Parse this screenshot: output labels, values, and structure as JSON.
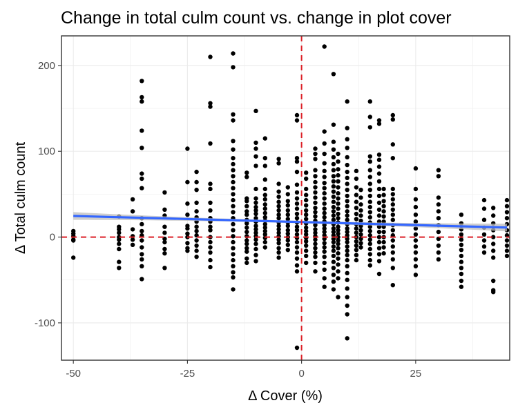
{
  "chart_data": {
    "type": "scatter",
    "title": "Change in total culm count vs. change in plot cover",
    "xlabel": "Δ Cover (%)",
    "ylabel": "Δ Total culm count",
    "xlim": [
      -52.6,
      45.6
    ],
    "ylim": [
      -143.5,
      234.5
    ],
    "x_ticks": [
      -50,
      -25,
      0,
      25
    ],
    "x_tick_labels": [
      "-50",
      "-25",
      "0",
      "25"
    ],
    "y_ticks": [
      -100,
      0,
      100,
      200
    ],
    "y_tick_labels": [
      "-100",
      "0",
      "100",
      "200"
    ],
    "grid": true,
    "legend": "none",
    "reference_lines": {
      "x": 0,
      "y": 0,
      "color": "#dc1f26",
      "style": "dashed"
    },
    "trend": {
      "type": "linear",
      "color": "#3366ff",
      "band_color": "#bdbdbd",
      "start": [
        -50,
        24.6
      ],
      "end": [
        45,
        11.1
      ],
      "band_halfwidth_ends": 4.5,
      "band_halfwidth_center": 1.4
    },
    "columns": [
      {
        "x": -50,
        "y": [
          7,
          4,
          1,
          -3,
          -4,
          -24
        ]
      },
      {
        "x": -40,
        "y": [
          24,
          12,
          9,
          5,
          0,
          -3,
          -8,
          -14,
          -29,
          -36
        ]
      },
      {
        "x": -37,
        "y": [
          44,
          30,
          9,
          1,
          -3,
          -9
        ]
      },
      {
        "x": -35,
        "y": [
          182,
          163,
          158,
          124,
          104,
          74,
          68,
          57,
          22,
          15,
          7,
          2,
          -4,
          -12,
          -20,
          -26,
          -34,
          -49
        ]
      },
      {
        "x": -30,
        "y": [
          52,
          32,
          25,
          12,
          5,
          -2,
          -6,
          -14,
          -19,
          -36
        ]
      },
      {
        "x": -25,
        "y": [
          103,
          64,
          39,
          26,
          13,
          10,
          4,
          0,
          -7,
          -13,
          -16
        ]
      },
      {
        "x": -23,
        "y": [
          76,
          64,
          55,
          40,
          30,
          23,
          18,
          12,
          7,
          2,
          -4,
          -10,
          -16,
          -23
        ]
      },
      {
        "x": -20,
        "y": [
          210,
          156,
          152,
          109,
          62,
          56,
          40,
          31,
          22,
          18,
          12,
          8,
          0,
          -6,
          -12,
          -18,
          -27,
          -35
        ]
      },
      {
        "x": -15,
        "y": [
          214,
          198,
          143,
          136,
          112,
          102,
          92,
          85,
          78,
          71,
          64,
          57,
          50,
          43,
          36,
          29,
          22,
          15,
          8,
          1,
          -6,
          -13,
          -20,
          -27,
          -34,
          -41,
          -47,
          -61
        ]
      },
      {
        "x": -12,
        "y": [
          75,
          70,
          45,
          42,
          36,
          30,
          26,
          20,
          16,
          11,
          6,
          1,
          -4,
          -8,
          -13,
          -17,
          -25,
          -30
        ]
      },
      {
        "x": -10,
        "y": [
          147,
          110,
          103,
          94,
          83,
          56,
          45,
          40,
          35,
          31,
          27,
          22,
          18,
          13,
          9,
          5,
          1,
          -3,
          -8,
          -14,
          -21,
          -28
        ]
      },
      {
        "x": -8,
        "y": [
          115,
          92,
          83,
          67,
          56,
          49,
          44,
          38,
          33,
          28,
          23,
          19,
          15,
          11,
          7,
          3,
          -1,
          -6,
          -12
        ]
      },
      {
        "x": -5,
        "y": [
          91,
          86,
          62,
          53,
          47,
          41,
          36,
          31,
          26,
          22,
          17,
          13,
          9,
          5,
          1,
          -3,
          -7,
          -13,
          -18,
          -24
        ]
      },
      {
        "x": -3,
        "y": [
          58,
          50,
          42,
          37,
          31,
          26,
          21,
          17,
          13,
          8,
          4,
          0,
          -4,
          -9,
          -15
        ]
      },
      {
        "x": -1,
        "y": [
          142,
          136,
          92,
          88,
          76,
          61,
          52,
          45,
          39,
          33,
          27,
          22,
          17,
          12,
          8,
          3,
          -1,
          -6,
          -12,
          -18,
          -25,
          -33,
          -40,
          -129
        ]
      },
      {
        "x": 1,
        "y": [
          75,
          68,
          56,
          49,
          43,
          37,
          31,
          26,
          21,
          16,
          11,
          7,
          3,
          -1,
          -5,
          -10,
          -16,
          -22,
          -30
        ]
      },
      {
        "x": 3,
        "y": [
          103,
          97,
          91,
          78,
          71,
          64,
          58,
          52,
          46,
          40,
          34,
          29,
          24,
          19,
          14,
          9,
          5,
          1,
          -3,
          -8,
          -13,
          -18,
          -23,
          -30,
          -40
        ]
      },
      {
        "x": 5,
        "y": [
          222,
          123,
          109,
          97,
          86,
          77,
          70,
          63,
          57,
          51,
          45,
          39,
          33,
          28,
          23,
          18,
          14,
          10,
          6,
          2,
          -2,
          -7,
          -12,
          -17,
          -23,
          -30,
          -38,
          -48,
          -58
        ]
      },
      {
        "x": 7,
        "y": [
          190,
          131,
          111,
          102,
          93,
          85,
          78,
          71,
          65,
          59,
          53,
          47,
          41,
          35,
          30,
          25,
          20,
          15,
          10,
          6,
          2,
          -2,
          -6,
          -11,
          -16,
          -22,
          -29,
          -36,
          -44,
          -52,
          -61
        ]
      },
      {
        "x": 8,
        "y": [
          97,
          88,
          79,
          72,
          65,
          58,
          51,
          45,
          39,
          33,
          27,
          22,
          17,
          12,
          8,
          4,
          0,
          -4,
          -8,
          -13,
          -19,
          -25,
          -32,
          -40,
          -48,
          -70
        ]
      },
      {
        "x": 10,
        "y": [
          158,
          127,
          114,
          104,
          93,
          84,
          76,
          69,
          62,
          55,
          48,
          42,
          36,
          30,
          25,
          20,
          15,
          10,
          6,
          2,
          -2,
          -6,
          -11,
          -16,
          -21,
          -27,
          -34,
          -42,
          -50,
          -60,
          -70,
          -80,
          -90,
          -118
        ]
      },
      {
        "x": 12,
        "y": [
          77,
          68,
          58,
          49,
          41,
          34,
          27,
          21,
          15,
          10,
          5,
          0,
          -5,
          -10,
          -15,
          -21,
          -27
        ]
      },
      {
        "x": 13,
        "y": [
          55,
          46,
          38,
          31,
          25,
          19,
          13,
          8,
          3,
          -2,
          -7,
          -12
        ]
      },
      {
        "x": 15,
        "y": [
          158,
          140,
          128,
          94,
          88,
          78,
          70,
          62,
          55,
          48,
          41,
          35,
          29,
          23,
          17,
          12,
          7,
          2,
          -3,
          -8,
          -14,
          -20,
          -27,
          -33
        ]
      },
      {
        "x": 17,
        "y": [
          136,
          132,
          96,
          90,
          82,
          74,
          65,
          56,
          48,
          40,
          32,
          25,
          18,
          12,
          6,
          0,
          -6,
          -13,
          -20,
          -28,
          -43
        ]
      },
      {
        "x": 18,
        "y": [
          56,
          49,
          42,
          36,
          30,
          24,
          18,
          12,
          6,
          0,
          -6,
          -12,
          -19
        ]
      },
      {
        "x": 20,
        "y": [
          142,
          137,
          108,
          92,
          56,
          50,
          44,
          38,
          32,
          26,
          20,
          14,
          8,
          2,
          -4,
          -11,
          -18,
          -26,
          -36,
          -56
        ]
      },
      {
        "x": 25,
        "y": [
          80,
          56,
          44,
          35,
          26,
          18,
          10,
          3,
          -4,
          -11,
          -18,
          -26,
          -34,
          -44
        ]
      },
      {
        "x": 30,
        "y": [
          78,
          71,
          46,
          38,
          30,
          22,
          14,
          6,
          -2,
          -10,
          -18,
          -26
        ]
      },
      {
        "x": 35,
        "y": [
          26,
          16,
          9,
          3,
          -3,
          -9,
          -15,
          -22,
          -29,
          -36,
          -43,
          -51,
          -58
        ]
      },
      {
        "x": 40,
        "y": [
          43,
          33,
          20,
          11,
          3,
          -4,
          -11,
          -18
        ]
      },
      {
        "x": 42,
        "y": [
          34,
          25,
          16,
          8,
          0,
          -8,
          -16,
          -24,
          -51,
          -62,
          -64
        ]
      },
      {
        "x": 45,
        "y": [
          43,
          36,
          29,
          22,
          15,
          8,
          2,
          -4,
          -10,
          -16,
          -22
        ]
      }
    ]
  }
}
